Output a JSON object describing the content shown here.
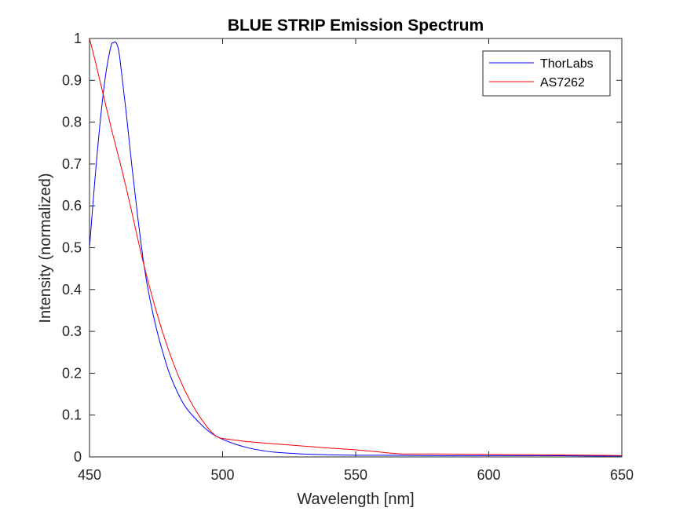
{
  "chart_data": {
    "type": "line",
    "title": "BLUE STRIP Emission Spectrum",
    "xlabel": "Wavelength [nm]",
    "ylabel": "Intensity (normalized)",
    "xlim": [
      450,
      650
    ],
    "ylim": [
      0,
      1
    ],
    "xticks": [
      "450",
      "500",
      "550",
      "600",
      "650"
    ],
    "yticks": [
      "0",
      "0.1",
      "0.2",
      "0.3",
      "0.4",
      "0.5",
      "0.6",
      "0.7",
      "0.8",
      "0.9",
      "1"
    ],
    "grid": false,
    "legend_position": "top-right",
    "series": [
      {
        "name": "ThorLabs",
        "color": "#0000ff",
        "x": [
          450,
          452,
          454,
          456,
          458,
          459,
          460,
          461,
          462,
          464,
          466,
          468,
          470,
          472,
          475,
          478,
          480,
          483,
          486,
          490,
          495,
          500,
          505,
          510,
          515,
          520,
          530,
          540,
          550,
          560,
          580,
          600,
          620,
          640,
          650
        ],
        "y": [
          0.5,
          0.66,
          0.8,
          0.91,
          0.98,
          0.99,
          0.99,
          0.97,
          0.92,
          0.81,
          0.69,
          0.58,
          0.48,
          0.4,
          0.31,
          0.24,
          0.2,
          0.155,
          0.12,
          0.09,
          0.06,
          0.042,
          0.03,
          0.021,
          0.015,
          0.011,
          0.007,
          0.005,
          0.004,
          0.004,
          0.003,
          0.003,
          0.003,
          0.002,
          0.002
        ]
      },
      {
        "name": "AS7262",
        "color": "#ff0000",
        "x": [
          450,
          452,
          455,
          458,
          460,
          462,
          465,
          470,
          475,
          480,
          485,
          490,
          495,
          498,
          500,
          505,
          510,
          520,
          530,
          540,
          550,
          560,
          565,
          570,
          580,
          600,
          620,
          640,
          650
        ],
        "y": [
          1.0,
          0.95,
          0.87,
          0.79,
          0.74,
          0.69,
          0.61,
          0.47,
          0.35,
          0.25,
          0.17,
          0.11,
          0.065,
          0.048,
          0.044,
          0.04,
          0.036,
          0.031,
          0.026,
          0.021,
          0.017,
          0.011,
          0.008,
          0.007,
          0.007,
          0.006,
          0.005,
          0.004,
          0.003
        ]
      }
    ]
  }
}
